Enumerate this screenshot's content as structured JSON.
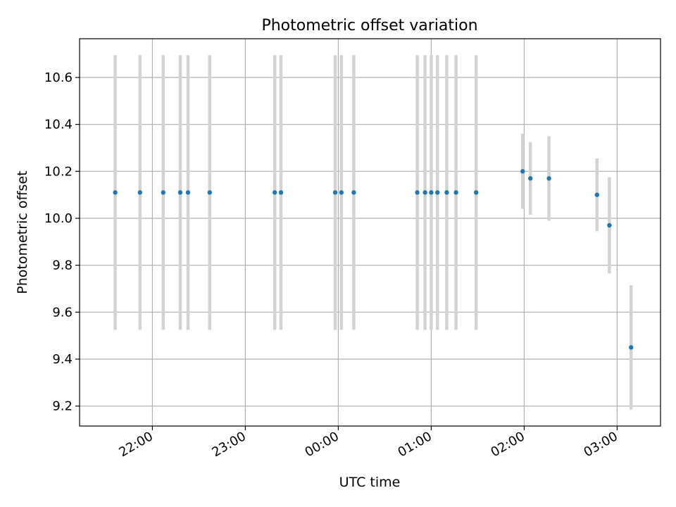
{
  "chart_data": {
    "type": "scatter",
    "title": "Photometric offset variation",
    "xlabel": "UTC time",
    "ylabel": "Photometric offset",
    "x_is_time": true,
    "x_range": [
      "21:13",
      "03:28"
    ],
    "ylim": [
      9.115,
      10.765
    ],
    "x_ticks": [
      "22:00",
      "23:00",
      "00:00",
      "01:00",
      "02:00",
      "03:00"
    ],
    "y_ticks": [
      "9.2",
      "9.4",
      "9.6",
      "9.8",
      "10.0",
      "10.2",
      "10.4",
      "10.6"
    ],
    "grid": true,
    "colors": {
      "points": "#1f77b4",
      "errorbars": "#d3d3d3",
      "grid": "#b0b0b0",
      "axes": "#000000"
    },
    "points": [
      {
        "time": "21:36",
        "y": 10.11,
        "err": 0.585
      },
      {
        "time": "21:52",
        "y": 10.11,
        "err": 0.585
      },
      {
        "time": "22:07",
        "y": 10.11,
        "err": 0.585
      },
      {
        "time": "22:18",
        "y": 10.11,
        "err": 0.585
      },
      {
        "time": "22:23",
        "y": 10.11,
        "err": 0.585
      },
      {
        "time": "22:37",
        "y": 10.11,
        "err": 0.585
      },
      {
        "time": "23:19",
        "y": 10.11,
        "err": 0.585
      },
      {
        "time": "23:23",
        "y": 10.11,
        "err": 0.585
      },
      {
        "time": "23:58",
        "y": 10.11,
        "err": 0.585
      },
      {
        "time": "00:02",
        "y": 10.11,
        "err": 0.585
      },
      {
        "time": "00:10",
        "y": 10.11,
        "err": 0.585
      },
      {
        "time": "00:51",
        "y": 10.11,
        "err": 0.585
      },
      {
        "time": "00:56",
        "y": 10.11,
        "err": 0.585
      },
      {
        "time": "01:00",
        "y": 10.11,
        "err": 0.585
      },
      {
        "time": "01:04",
        "y": 10.11,
        "err": 0.585
      },
      {
        "time": "01:10",
        "y": 10.11,
        "err": 0.585
      },
      {
        "time": "01:16",
        "y": 10.11,
        "err": 0.585
      },
      {
        "time": "01:29",
        "y": 10.11,
        "err": 0.585
      },
      {
        "time": "01:59",
        "y": 10.2,
        "err": 0.16
      },
      {
        "time": "02:04",
        "y": 10.17,
        "err": 0.155
      },
      {
        "time": "02:16",
        "y": 10.17,
        "err": 0.18
      },
      {
        "time": "02:47",
        "y": 10.1,
        "err": 0.155
      },
      {
        "time": "02:55",
        "y": 9.97,
        "err": 0.205
      },
      {
        "time": "03:09",
        "y": 9.45,
        "err": 0.265
      }
    ]
  }
}
